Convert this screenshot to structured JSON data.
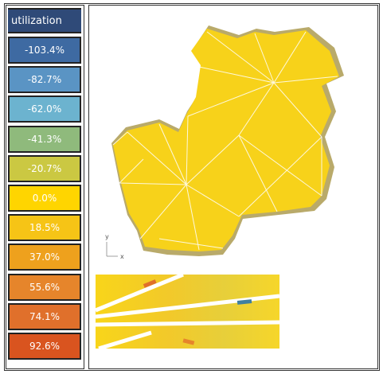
{
  "legend": {
    "title": "utilization",
    "title_color": "#2f4a78",
    "entries": [
      {
        "label": "-103.4%",
        "color": "#3e6aa2"
      },
      {
        "label": "-82.7%",
        "color": "#5a94c4"
      },
      {
        "label": "-62.0%",
        "color": "#6cb3cf"
      },
      {
        "label": "-41.3%",
        "color": "#8fba7c"
      },
      {
        "label": "-20.7%",
        "color": "#cbc842"
      },
      {
        "label": "0.0%",
        "color": "#ffd500"
      },
      {
        "label": "18.5%",
        "color": "#f6c416"
      },
      {
        "label": "37.0%",
        "color": "#eea11d"
      },
      {
        "label": "55.6%",
        "color": "#e6852b"
      },
      {
        "label": "74.1%",
        "color": "#e0702b"
      },
      {
        "label": "92.6%",
        "color": "#d9541f"
      }
    ]
  },
  "axes": {
    "y": "y",
    "x": "x"
  }
}
